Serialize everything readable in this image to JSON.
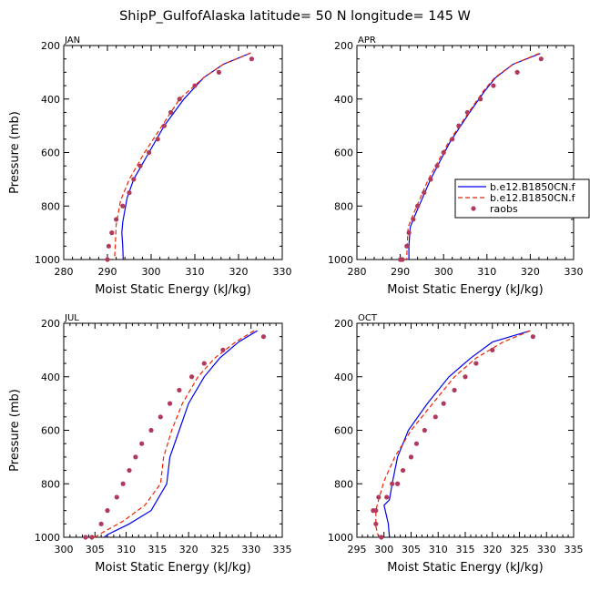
{
  "figure": {
    "title": "ShipP_GulfofAlaska  latitude= 50 N longitude= 145 W"
  },
  "legend": {
    "placement": "right of APR panel",
    "entries": [
      {
        "label": "b.e12.B1850CN.f",
        "color": "#0000ee",
        "style": "solid"
      },
      {
        "label": "b.e12.B1850CN.f",
        "color": "#ee2200",
        "style": "dashed"
      },
      {
        "label": "raobs",
        "color": "#b03a5b",
        "style": "dot"
      }
    ]
  },
  "chart_data": [
    {
      "type": "line",
      "panel_label": "JAN",
      "xlabel": "Moist Static Energy (kJ/kg)",
      "ylabel": "Pressure (mb)",
      "xlim": [
        280,
        330
      ],
      "ylim": [
        1000,
        200
      ],
      "xticks": [
        "280",
        "290",
        "300",
        "310",
        "320",
        "330"
      ],
      "yticks": [
        "200",
        "400",
        "600",
        "800",
        "1000"
      ],
      "series": [
        {
          "name": "b.e12.B1850CN.f",
          "color": "#0000ee",
          "style": "solid",
          "x": [
            322.8,
            316.5,
            312,
            307.5,
            303,
            299.5,
            296,
            294.5,
            293.5,
            293.3,
            293.5,
            293.6
          ],
          "y": [
            228,
            270,
            320,
            400,
            500,
            600,
            700,
            770,
            860,
            900,
            950,
            1000
          ]
        },
        {
          "name": "b.e12.B1850CN.f",
          "color": "#ee2200",
          "style": "dashed",
          "x": [
            322.8,
            316.5,
            312,
            306.5,
            302.5,
            298.5,
            295,
            293,
            292,
            291.8,
            291.6
          ],
          "y": [
            228,
            270,
            320,
            400,
            500,
            600,
            700,
            780,
            870,
            950,
            1000
          ]
        },
        {
          "name": "raobs",
          "color": "#b03a5b",
          "style": "dot",
          "x": [
            323,
            315.5,
            310,
            306.5,
            304.5,
            303,
            301.5,
            299.5,
            297.5,
            296,
            295,
            293.5,
            292,
            291,
            290.3,
            290
          ],
          "y": [
            250,
            300,
            350,
            400,
            450,
            500,
            550,
            600,
            650,
            700,
            750,
            800,
            850,
            900,
            950,
            1000
          ]
        }
      ]
    },
    {
      "type": "line",
      "panel_label": "APR",
      "xlabel": "Moist Static Energy (kJ/kg)",
      "ylabel": "",
      "xlim": [
        280,
        330
      ],
      "ylim": [
        1000,
        200
      ],
      "xticks": [
        "280",
        "290",
        "300",
        "310",
        "320",
        "330"
      ],
      "yticks": [
        "200",
        "400",
        "600",
        "800",
        "1000"
      ],
      "series": [
        {
          "name": "b.e12.B1850CN.f",
          "color": "#0000ee",
          "style": "solid",
          "x": [
            322.3,
            316,
            312,
            309.5,
            306,
            301.5,
            297,
            293,
            292.3,
            292,
            292
          ],
          "y": [
            230,
            270,
            320,
            370,
            450,
            560,
            700,
            850,
            880,
            950,
            1000
          ]
        },
        {
          "name": "b.e12.B1850CN.f",
          "color": "#ee2200",
          "style": "dashed",
          "x": [
            322,
            316,
            311.8,
            309.2,
            305.8,
            301.2,
            296.5,
            292.5,
            291.8,
            291.6,
            291.5
          ],
          "y": [
            230,
            270,
            320,
            370,
            450,
            560,
            700,
            850,
            880,
            950,
            1000
          ]
        },
        {
          "name": "raobs",
          "color": "#b03a5b",
          "style": "dot",
          "x": [
            322.5,
            317,
            311.5,
            308.5,
            305.5,
            303.5,
            302,
            300,
            298.5,
            297,
            295.5,
            294,
            293,
            292,
            291.5,
            290.5,
            290.2,
            290
          ],
          "y": [
            250,
            300,
            350,
            400,
            450,
            500,
            550,
            600,
            650,
            700,
            750,
            800,
            850,
            900,
            950,
            1000,
            1000,
            1000
          ]
        }
      ]
    },
    {
      "type": "line",
      "panel_label": "JUL",
      "xlabel": "Moist Static Energy (kJ/kg)",
      "ylabel": "Pressure (mb)",
      "xlim": [
        300,
        335
      ],
      "ylim": [
        1000,
        200
      ],
      "xticks": [
        "300",
        "305",
        "310",
        "315",
        "320",
        "325",
        "330",
        "335"
      ],
      "yticks": [
        "200",
        "400",
        "600",
        "800",
        "1000"
      ],
      "series": [
        {
          "name": "b.e12.B1850CN.f",
          "color": "#0000ee",
          "style": "solid",
          "x": [
            331,
            328,
            325,
            322.5,
            320,
            318.5,
            317,
            316.5,
            314,
            310.5,
            307,
            306.5
          ],
          "y": [
            228,
            270,
            330,
            400,
            500,
            600,
            700,
            800,
            900,
            950,
            990,
            1000
          ]
        },
        {
          "name": "b.e12.B1850CN.f",
          "color": "#ee2200",
          "style": "dashed",
          "x": [
            330.5,
            327.5,
            324.2,
            321.5,
            319,
            317.3,
            316,
            315.5,
            313,
            309.5,
            306,
            305
          ],
          "y": [
            228,
            270,
            330,
            400,
            500,
            600,
            700,
            800,
            880,
            940,
            985,
            1000
          ]
        },
        {
          "name": "raobs",
          "color": "#b03a5b",
          "style": "dot",
          "x": [
            332,
            325.5,
            322.5,
            320.5,
            318.5,
            317,
            315.5,
            314,
            312.5,
            311.5,
            310.5,
            309.5,
            308.5,
            307,
            306,
            304.5,
            303.5
          ],
          "y": [
            250,
            300,
            350,
            400,
            450,
            500,
            550,
            600,
            650,
            700,
            750,
            800,
            850,
            900,
            950,
            1000,
            1000
          ]
        }
      ]
    },
    {
      "type": "line",
      "panel_label": "OCT",
      "xlabel": "Moist Static Energy (kJ/kg)",
      "ylabel": "",
      "xlim": [
        295,
        335
      ],
      "ylim": [
        1000,
        200
      ],
      "xticks": [
        "295",
        "300",
        "305",
        "310",
        "315",
        "320",
        "325",
        "330",
        "335"
      ],
      "yticks": [
        "200",
        "400",
        "600",
        "800",
        "1000"
      ],
      "series": [
        {
          "name": "b.e12.B1850CN.f",
          "color": "#0000ee",
          "style": "solid",
          "x": [
            327,
            320,
            316,
            312,
            308,
            304.5,
            302.5,
            301.5,
            301,
            300,
            300.8,
            301
          ],
          "y": [
            228,
            270,
            330,
            400,
            500,
            600,
            700,
            800,
            860,
            880,
            950,
            1000
          ]
        },
        {
          "name": "b.e12.B1850CN.f",
          "color": "#ee2200",
          "style": "dashed",
          "x": [
            327,
            322,
            317,
            313,
            309,
            305,
            302,
            300,
            299,
            298.5,
            298.5,
            299
          ],
          "y": [
            228,
            270,
            330,
            400,
            500,
            600,
            700,
            790,
            860,
            900,
            960,
            1000
          ]
        },
        {
          "name": "raobs",
          "color": "#b03a5b",
          "style": "dot",
          "x": [
            327.5,
            320,
            317,
            315,
            313,
            311,
            309.5,
            307.5,
            306,
            305,
            303.5,
            302.5,
            301.5,
            300.5,
            299,
            298.5,
            298,
            298.5,
            299.5
          ],
          "y": [
            250,
            300,
            350,
            400,
            450,
            500,
            550,
            600,
            650,
            700,
            750,
            800,
            800,
            850,
            850,
            900,
            900,
            950,
            1000
          ]
        }
      ]
    }
  ]
}
